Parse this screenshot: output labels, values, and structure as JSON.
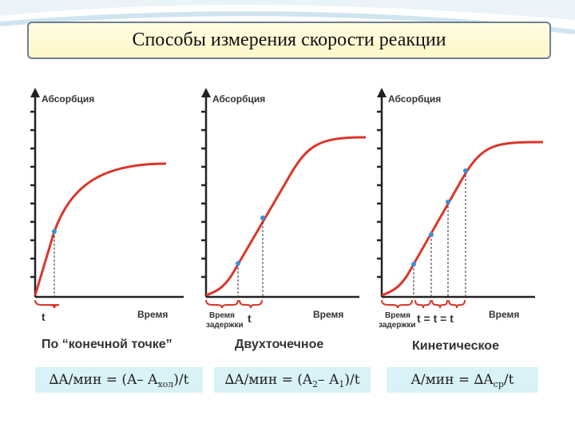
{
  "title": "Способы измерения скорости реакции",
  "axis_label": "Абсорбция",
  "time_label": "Время",
  "panels": [
    {
      "caption": "По “конечной точке”",
      "under": "t",
      "delay": ""
    },
    {
      "caption": "Двухточечное",
      "under": "t",
      "delay": "Время задержки"
    },
    {
      "caption": "Кинетическое",
      "under": "t = t = t",
      "delay": "Время задержки"
    }
  ],
  "delay_line1": "Время",
  "delay_line2": "задержки",
  "formulas": {
    "f1": {
      "pre": "∆A/мин = (A– A ",
      "sub": "хол",
      "post": ")/t"
    },
    "f2": {
      "pre": "∆A/мин = (A",
      "sub1": "2",
      "mid": "– A",
      "sub2": "1",
      "post": ")/t"
    },
    "f3": {
      "pre": "A/мин = ∆A ",
      "sub": "ср",
      "post": "/t"
    }
  },
  "colors": {
    "curve": "#d9372b",
    "marker": "#3a8fd6",
    "axis": "#222222",
    "bracket": "#d9372b"
  }
}
